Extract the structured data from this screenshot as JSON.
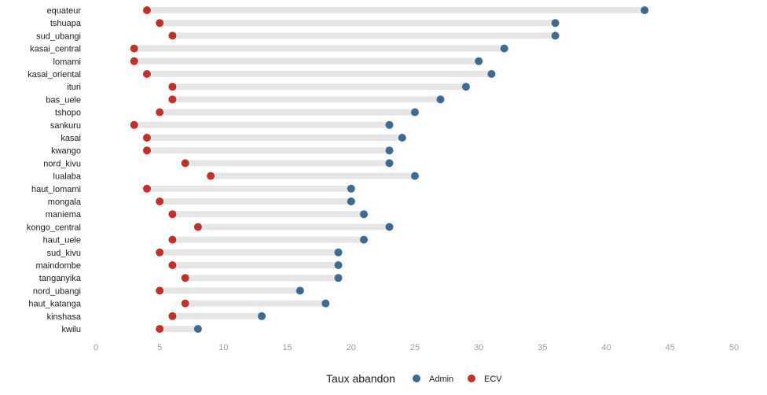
{
  "chart_data": {
    "type": "dumbbell",
    "xlim": [
      0,
      50
    ],
    "xticks": [
      "0",
      "5",
      "10",
      "15",
      "20",
      "25",
      "30",
      "35",
      "40",
      "45",
      "50"
    ],
    "grid": false,
    "legend": {
      "title": "Taux abandon",
      "placement": "bottom",
      "entries": [
        "Admin",
        "ECV"
      ]
    },
    "colors": {
      "Admin": "#3f6a8e",
      "ECV": "#c0312b",
      "bar": "#e5e5e5"
    },
    "categories": [
      "equateur",
      "tshuapa",
      "sud_ubangi",
      "kasai_central",
      "lomami",
      "kasai_oriental",
      "ituri",
      "bas_uele",
      "tshopo",
      "sankuru",
      "kasai",
      "kwango",
      "nord_kivu",
      "lualaba",
      "haut_lomami",
      "mongala",
      "maniema",
      "kongo_central",
      "haut_uele",
      "sud_kivu",
      "maindombe",
      "tanganyika",
      "nord_ubangi",
      "haut_katanga",
      "kinshasa",
      "kwilu"
    ],
    "series": [
      {
        "name": "Admin",
        "values": [
          43,
          36,
          36,
          32,
          30,
          31,
          29,
          27,
          25,
          23,
          24,
          23,
          23,
          25,
          20,
          20,
          21,
          23,
          21,
          19,
          19,
          19,
          16,
          18,
          13,
          8
        ]
      },
      {
        "name": "ECV",
        "values": [
          4,
          5,
          6,
          3,
          3,
          4,
          6,
          6,
          5,
          3,
          4,
          4,
          7,
          9,
          4,
          5,
          6,
          8,
          6,
          5,
          6,
          7,
          5,
          7,
          6,
          5
        ]
      }
    ]
  }
}
